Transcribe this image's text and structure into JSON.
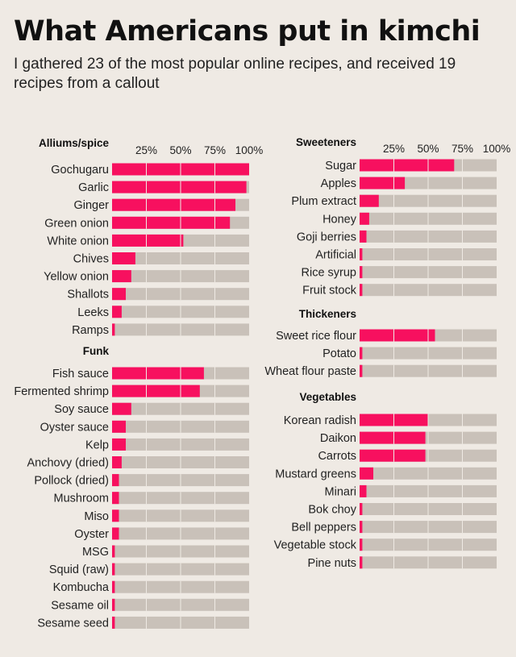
{
  "header": {
    "title": "What Americans put in kimchi",
    "subtitle": "I gathered 23 of the most popular online recipes, and received 19 recipes from a callout"
  },
  "colors": {
    "background": "#efeae4",
    "bar": "#f7105f",
    "track": "#c9c1b9"
  },
  "chart_data": {
    "type": "bar",
    "orientation": "horizontal",
    "unit": "% of recipes",
    "xlim": [
      0,
      100
    ],
    "ticks": [
      "25%",
      "50%",
      "75%",
      "100%"
    ],
    "panels": [
      {
        "title": "Alliums/spice",
        "categories": [
          "Gochugaru",
          "Garlic",
          "Ginger",
          "Green onion",
          "White onion",
          "Chives",
          "Yellow onion",
          "Shallots",
          "Leeks",
          "Ramps"
        ],
        "values": [
          100,
          98,
          90,
          86,
          52,
          17,
          14,
          10,
          7,
          2
        ]
      },
      {
        "title": "Funk",
        "categories": [
          "Fish sauce",
          "Fermented shrimp",
          "Soy sauce",
          "Oyster sauce",
          "Kelp",
          "Anchovy (dried)",
          "Pollock (dried)",
          "Mushroom",
          "Miso",
          "Oyster",
          "MSG",
          "Squid (raw)",
          "Kombucha",
          "Sesame oil",
          "Sesame seed"
        ],
        "values": [
          67,
          64,
          14,
          10,
          10,
          7,
          5,
          5,
          5,
          5,
          2,
          2,
          2,
          2,
          2
        ]
      },
      {
        "title": "Sweeteners",
        "categories": [
          "Sugar",
          "Apples",
          "Plum extract",
          "Honey",
          "Goji berries",
          "Artificial",
          "Rice syrup",
          "Fruit stock"
        ],
        "values": [
          69,
          33,
          14,
          7,
          5,
          2,
          2,
          2
        ]
      },
      {
        "title": "Thickeners",
        "categories": [
          "Sweet rice flour",
          "Potato",
          "Wheat flour paste"
        ],
        "values": [
          55,
          2,
          2
        ]
      },
      {
        "title": "Vegetables",
        "categories": [
          "Korean radish",
          "Daikon",
          "Carrots",
          "Mustard greens",
          "Minari",
          "Bok choy",
          "Bell peppers",
          "Vegetable stock",
          "Pine nuts"
        ],
        "values": [
          50,
          48,
          48,
          10,
          5,
          2,
          2,
          2,
          2
        ]
      }
    ]
  }
}
